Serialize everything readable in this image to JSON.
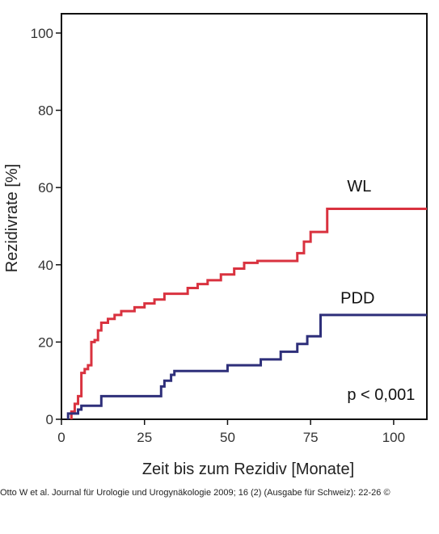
{
  "chart_data": {
    "type": "line",
    "step": true,
    "xlabel": "Zeit bis zum Rezidiv [Monate]",
    "ylabel": "Rezidivrate [%]",
    "xlim": [
      0,
      110
    ],
    "ylim": [
      0,
      105
    ],
    "xticks": [
      0,
      25,
      50,
      75,
      100
    ],
    "yticks": [
      0,
      20,
      40,
      60,
      80,
      100
    ],
    "grid": false,
    "series": [
      {
        "name": "WL",
        "color": "#d9323f",
        "x": [
          3,
          4,
          5,
          6,
          7,
          8,
          9,
          10,
          11,
          12,
          14,
          16,
          18,
          22,
          25,
          28,
          31,
          38,
          41,
          44,
          48,
          52,
          55,
          59,
          71,
          73,
          75,
          80,
          110
        ],
        "y": [
          2,
          4,
          6,
          12,
          13,
          14,
          20,
          20.5,
          23,
          25,
          26,
          27,
          28,
          29,
          30,
          31,
          32.5,
          34,
          35,
          36,
          37.5,
          39,
          40.5,
          41,
          43,
          46,
          48.5,
          54.5,
          54.5
        ]
      },
      {
        "name": "PDD",
        "color": "#2e2f7a",
        "x": [
          2,
          4,
          5,
          6,
          12,
          30,
          31,
          33,
          34,
          50,
          60,
          66,
          71,
          74,
          78,
          110
        ],
        "y": [
          1.5,
          1.5,
          2.5,
          3.5,
          6,
          8.5,
          10,
          11.5,
          12.5,
          14,
          15.5,
          17.5,
          19.5,
          21.5,
          27,
          27
        ]
      }
    ],
    "annotations": [
      {
        "text": "p < 0,001",
        "x": 86,
        "y": 5
      }
    ]
  },
  "caption": "Otto W et al. Journal für Urologie und Urogynäkologie 2009; 16 (2) (Ausgabe für Schweiz): 22-26 ©"
}
